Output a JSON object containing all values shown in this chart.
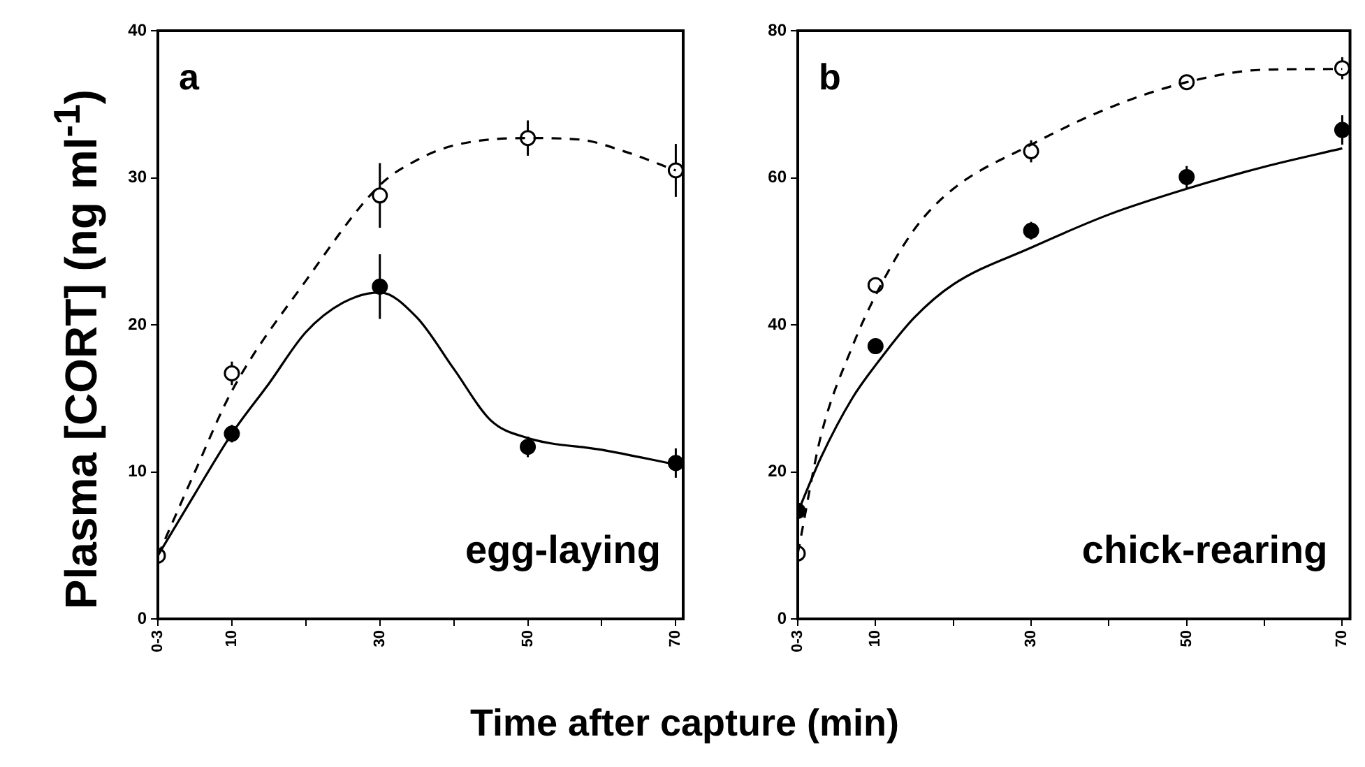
{
  "chart_data": [
    {
      "type": "scatter",
      "ylabel": "Plasma [CORT] (ng ml$^{-1}$)",
      "xlabel": "Time after capture (min)",
      "annotations": [
        "a",
        "egg-laying"
      ],
      "xlim": [
        0,
        71
      ],
      "xticks": [
        {
          "value": 0,
          "label": "0-3"
        },
        10,
        {
          "value": 20,
          "label": null
        },
        30,
        {
          "value": 40,
          "label": null
        },
        50,
        {
          "value": 60,
          "label": null
        },
        70
      ],
      "ylim": [
        0,
        40
      ],
      "yticks": [
        0,
        10,
        20,
        30,
        40
      ],
      "grid": false,
      "legend": false,
      "series": [
        {
          "type": "line",
          "marker": "none",
          "line_style": "dashed",
          "color": "#000000",
          "x": [
            0,
            5,
            10,
            20,
            30,
            35,
            40,
            50,
            57,
            63,
            70
          ],
          "values": [
            4.3,
            10,
            15.5,
            23,
            29.5,
            31.2,
            32.2,
            32.7,
            32.6,
            31.8,
            30.5
          ]
        },
        {
          "type": "line",
          "marker": "none",
          "line_style": "solid",
          "color": "#000000",
          "x": [
            0,
            5,
            10,
            15,
            20,
            25,
            30,
            35,
            40,
            45,
            50,
            60,
            70
          ],
          "values": [
            4.3,
            8.5,
            12.6,
            16,
            19.5,
            21.5,
            22.2,
            20.5,
            17,
            13.5,
            12.3,
            11.5,
            10.5
          ]
        },
        {
          "marker": "circle",
          "color": "#000000",
          "x": [
            0,
            10,
            30,
            50,
            70
          ],
          "values": [
            4.3,
            16.7,
            28.8,
            32.7,
            30.5
          ],
          "errors": [
            null,
            0.8,
            2.2,
            1.2,
            1.8
          ]
        },
        {
          "marker": "circle",
          "color": "#000000",
          "x": [
            10,
            30,
            50,
            70
          ],
          "values": [
            12.6,
            22.6,
            11.7,
            10.6
          ],
          "errors": [
            0.6,
            2.2,
            0.7,
            1
          ]
        }
      ]
    },
    {
      "type": "scatter",
      "annotations": [
        "b",
        "chick-rearing"
      ],
      "xlim": [
        0,
        71
      ],
      "xticks": [
        {
          "value": 0,
          "label": "0-3"
        },
        10,
        {
          "value": 20,
          "label": null
        },
        30,
        {
          "value": 40,
          "label": null
        },
        50,
        {
          "value": 60,
          "label": null
        },
        70
      ],
      "ylim": [
        0,
        80
      ],
      "yticks": [
        0,
        20,
        40,
        60,
        80
      ],
      "grid": false,
      "legend": false,
      "series": [
        {
          "type": "line",
          "marker": "none",
          "line_style": "dashed",
          "color": "#000000",
          "x": [
            0,
            3,
            7,
            10,
            15,
            20,
            30,
            40,
            50,
            60,
            70
          ],
          "values": [
            8.9,
            25,
            37,
            44,
            53,
            58.5,
            64.5,
            69.5,
            73,
            74.7,
            74.8
          ]
        },
        {
          "type": "line",
          "marker": "none",
          "line_style": "solid",
          "color": "#000000",
          "x": [
            0,
            3,
            7,
            10,
            15,
            20,
            30,
            40,
            50,
            60,
            70
          ],
          "values": [
            14.5,
            22,
            30,
            34.5,
            41,
            45.5,
            50.5,
            55,
            58.5,
            61.5,
            64
          ]
        },
        {
          "marker": "circle",
          "color": "#000000",
          "x": [
            0,
            10,
            30,
            50,
            70
          ],
          "values": [
            8.9,
            45.4,
            63.6,
            73,
            74.9
          ],
          "errors": [
            null,
            1,
            1.5,
            0.8,
            1.5
          ]
        },
        {
          "marker": "circle",
          "color": "#000000",
          "x": [
            0,
            10,
            30,
            50,
            70
          ],
          "values": [
            14.7,
            37.1,
            52.8,
            60.1,
            66.5
          ],
          "errors": [
            null,
            1,
            1.2,
            1.5,
            2
          ]
        }
      ]
    }
  ]
}
